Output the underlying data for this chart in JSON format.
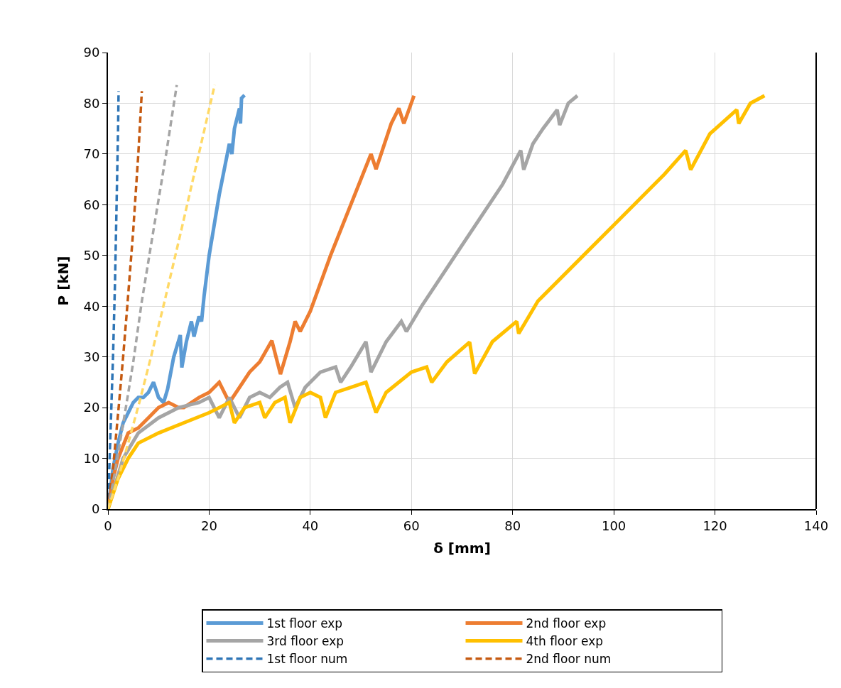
{
  "chart_data": {
    "type": "line",
    "xlabel": "δ [mm]",
    "ylabel": "P [kN]",
    "xlim": [
      0,
      140
    ],
    "ylim": [
      0,
      90
    ],
    "xticks": [
      0,
      20,
      40,
      60,
      80,
      100,
      120,
      140
    ],
    "yticks": [
      0,
      10,
      20,
      30,
      40,
      50,
      60,
      70,
      80,
      90
    ],
    "grid": true,
    "legend": "bottom",
    "marker": "none",
    "series": [
      {
        "name": "1st floor exp",
        "color": "#5b9bd5",
        "line_style": "solid",
        "x": [
          0,
          1,
          2,
          3,
          4,
          5,
          6,
          7,
          8,
          9,
          10,
          11,
          11.8,
          13,
          14.3,
          14.6,
          15.5,
          16.5,
          17,
          18,
          18.5,
          19,
          20,
          21,
          22,
          23,
          24,
          24.5,
          25,
          26,
          26.2,
          26.4,
          27
        ],
        "values": [
          0,
          8,
          13,
          17,
          19,
          21,
          22,
          22,
          23,
          25,
          22,
          21,
          23.7,
          30,
          34.3,
          27.9,
          33,
          37,
          34,
          38,
          37,
          42,
          50,
          56,
          62,
          67,
          72,
          70,
          75,
          79,
          76,
          81,
          81.6
        ]
      },
      {
        "name": "2nd floor exp",
        "color": "#ed7d31",
        "line_style": "solid",
        "x": [
          0,
          1,
          2,
          4,
          6,
          8,
          10,
          12,
          14,
          15,
          18,
          20,
          22,
          24,
          26,
          28,
          30,
          32.4,
          34.1,
          36,
          37,
          38,
          40,
          44,
          48,
          52,
          53,
          56,
          57.5,
          58.5,
          60.5
        ],
        "values": [
          0,
          6,
          10,
          15,
          16,
          18,
          20,
          21,
          20,
          20,
          22,
          23,
          25,
          21,
          24,
          27,
          29,
          33.2,
          26.6,
          33,
          37,
          35,
          39,
          50,
          60,
          70,
          67,
          76,
          79,
          76,
          81.5
        ]
      },
      {
        "name": "3rd floor exp",
        "color": "#a5a5a5",
        "line_style": "solid",
        "x": [
          0,
          1.5,
          3,
          6,
          10,
          14,
          18,
          20,
          22,
          24,
          26,
          28,
          30,
          32,
          34,
          35.5,
          37,
          39,
          42,
          45,
          46,
          48,
          51,
          52,
          55,
          58,
          59,
          62,
          66,
          70,
          74,
          78,
          81.6,
          82.2,
          84,
          86,
          88.8,
          89.3,
          91,
          92.8
        ],
        "values": [
          0,
          5,
          10,
          15,
          18,
          20,
          21,
          22,
          18,
          22,
          18,
          22,
          23,
          22,
          24,
          25,
          20,
          24,
          27,
          28,
          25,
          28,
          33,
          27,
          33,
          37,
          35,
          40,
          46,
          52,
          58,
          64,
          70.7,
          66.9,
          72,
          75,
          78.7,
          75.7,
          80,
          81.5
        ]
      },
      {
        "name": "4th floor exp",
        "color": "#ffc000",
        "line_style": "solid",
        "x": [
          0,
          2,
          4,
          6,
          10,
          15,
          20,
          22,
          24,
          25,
          27,
          30,
          31,
          33,
          35,
          36,
          38,
          40,
          42,
          43,
          45,
          48,
          51,
          53,
          55,
          60,
          63,
          64,
          67,
          71.5,
          72.5,
          76,
          80.8,
          81.2,
          85,
          90,
          95,
          100,
          105,
          110,
          114.2,
          115.2,
          119,
          124.3,
          124.7,
          127,
          129.8
        ],
        "values": [
          0,
          6,
          10,
          13,
          15,
          17,
          19,
          20,
          21,
          17,
          20,
          21,
          18,
          21,
          22,
          17,
          22,
          23,
          22,
          18,
          23,
          24,
          25,
          19,
          23,
          27,
          28,
          25,
          29,
          32.9,
          26.7,
          33,
          37,
          34.6,
          41,
          46,
          51,
          56,
          61,
          66,
          70.7,
          66.9,
          74,
          78.7,
          76,
          80,
          81.5
        ]
      },
      {
        "name": "1st floor num",
        "color": "#2e75b6",
        "line_style": "dashed",
        "x": [
          0,
          0.5,
          1,
          1.4,
          1.7,
          2.0,
          2.1
        ],
        "values": [
          0,
          15,
          30,
          45,
          60,
          75,
          82.4
        ]
      },
      {
        "name": "2nd floor num",
        "color": "#c55a11",
        "line_style": "dashed",
        "x": [
          0,
          1,
          2.2,
          3,
          3.9,
          5,
          6,
          6.7
        ],
        "values": [
          0,
          8,
          21,
          30,
          41,
          55,
          70,
          82.4
        ]
      },
      {
        "color": "#a5a5a5",
        "line_style": "dashed",
        "x": [
          0,
          1.5,
          3.7,
          5,
          6.7,
          9,
          11.5,
          13.6
        ],
        "values": [
          0,
          8,
          21,
          29,
          41,
          55,
          70,
          83.6
        ]
      },
      {
        "color": "#ffd966",
        "line_style": "dashed",
        "x": [
          0,
          2,
          4,
          6.2,
          8.5,
          11.2,
          14.5,
          17.5,
          21.1
        ],
        "values": [
          0,
          6,
          13,
          21,
          30,
          41,
          55,
          68,
          83.6
        ]
      }
    ]
  }
}
